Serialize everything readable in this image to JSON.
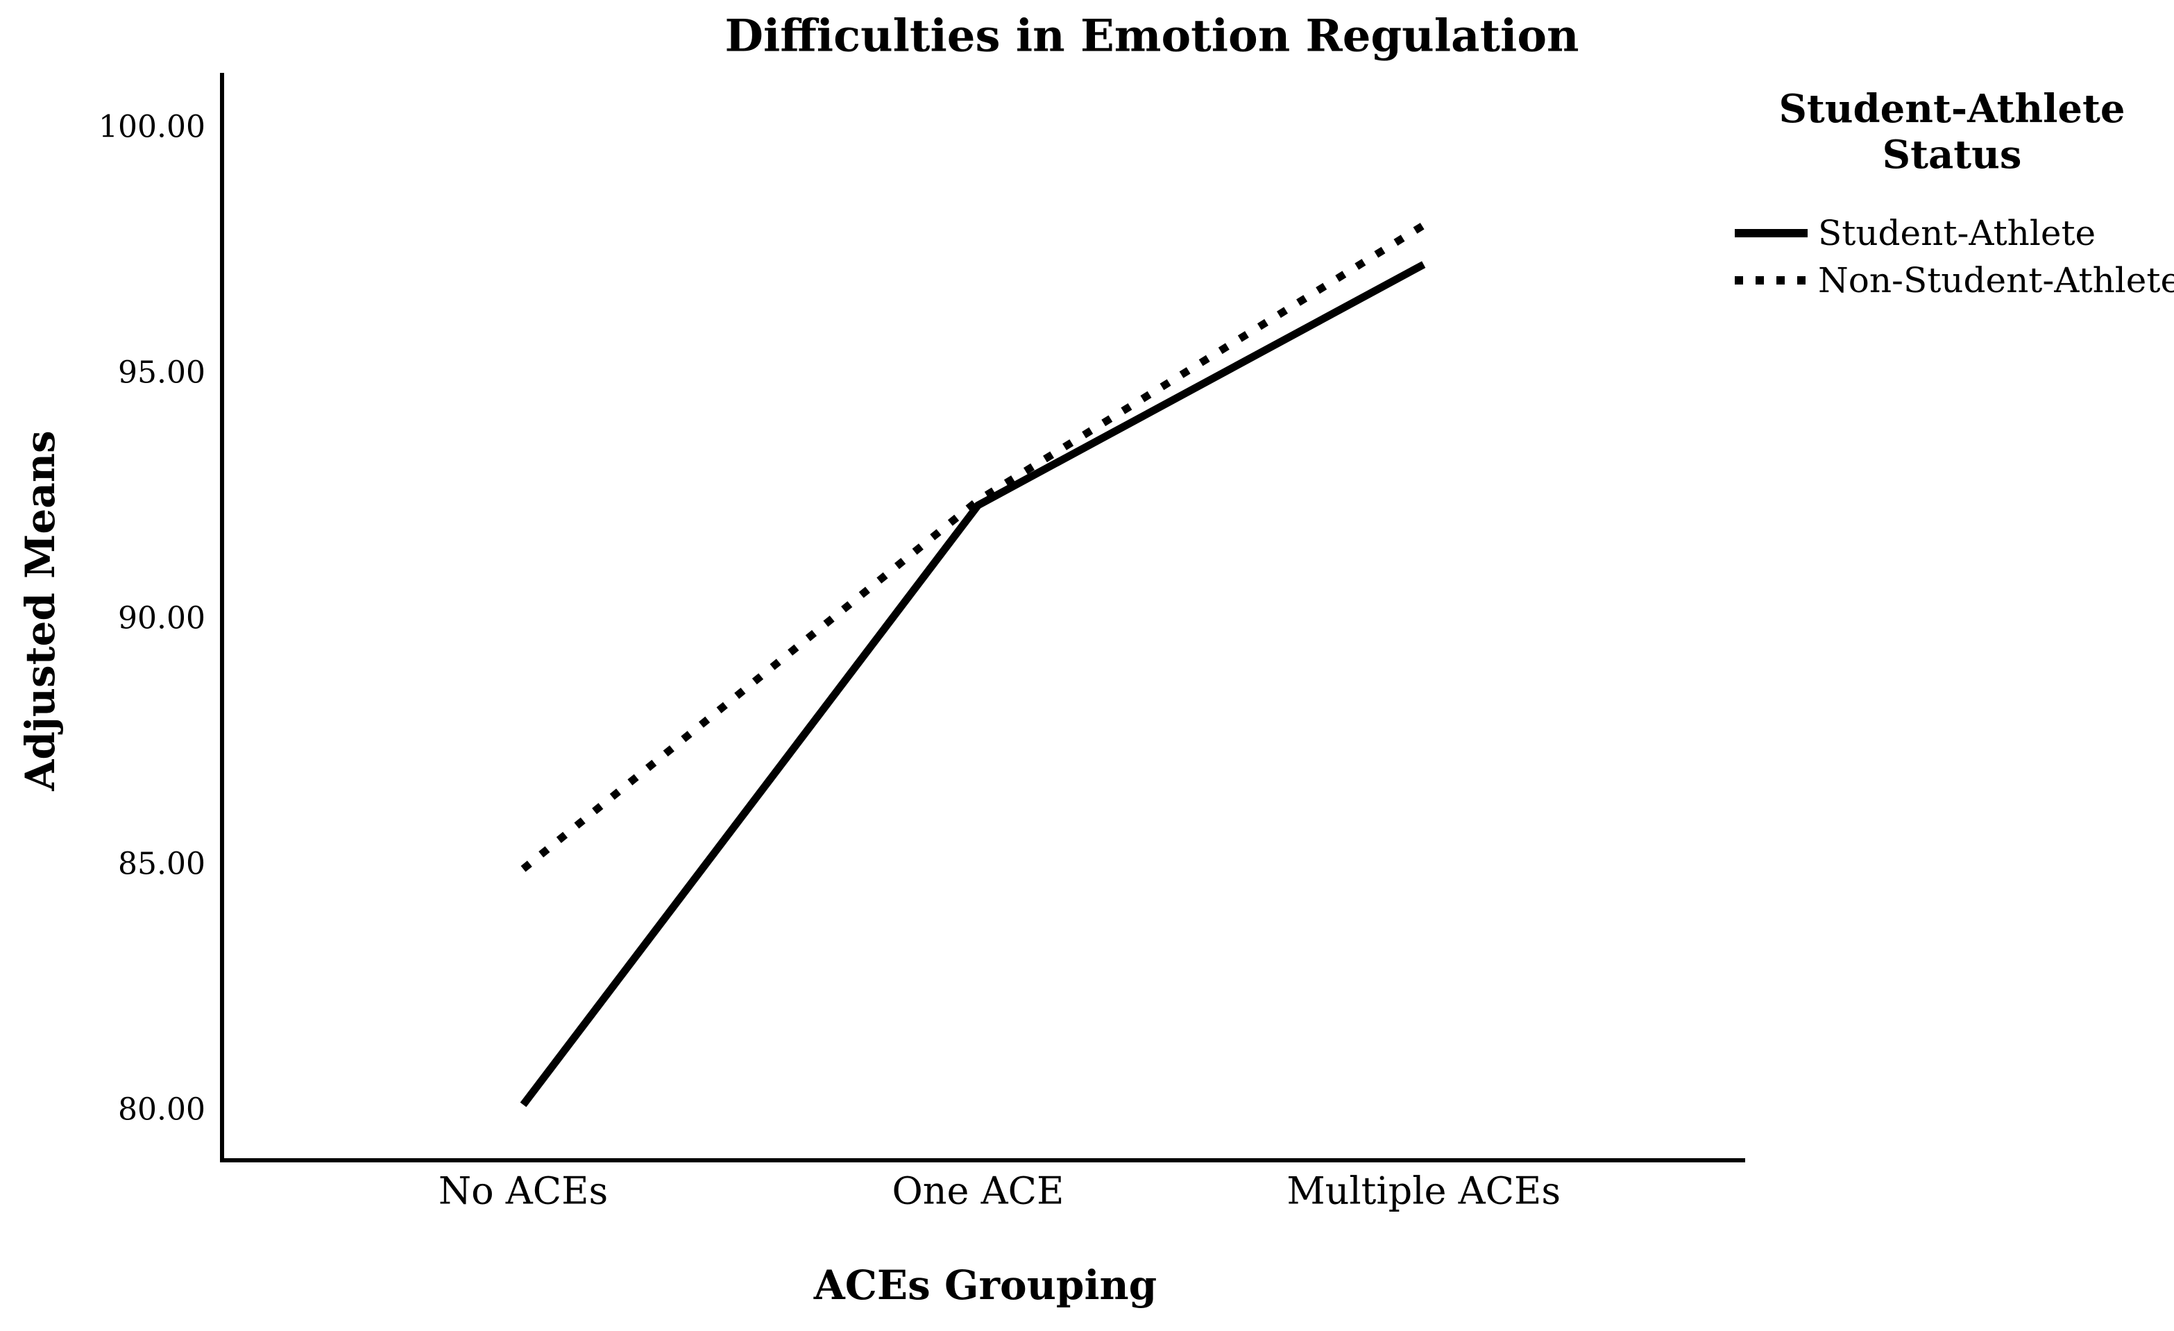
{
  "page": {
    "background_color": "#ffffff",
    "text_color": "#000000"
  },
  "chart_data": {
    "type": "line",
    "title": "Difficulties in Emotion Regulation",
    "xlabel": "ACEs Grouping",
    "ylabel": "Adjusted Means",
    "categories": [
      "No ACEs",
      "One ACE",
      "Multiple ACEs"
    ],
    "series": [
      {
        "name": "Student-Athlete",
        "line_style": "solid",
        "color": "#000000",
        "values": [
          80.1,
          92.3,
          97.2
        ]
      },
      {
        "name": "Non-Student-Athlete",
        "line_style": "dotted",
        "color": "#000000",
        "values": [
          84.9,
          92.4,
          98.0
        ]
      }
    ],
    "ylim": [
      78.97,
      101.1
    ],
    "yticks": [
      80,
      85,
      90,
      95,
      100
    ],
    "ytick_labels": [
      "80.00",
      "85.00",
      "90.00",
      "95.00",
      "100.00"
    ],
    "grid": false,
    "axis_color": "#000000",
    "legend": {
      "title_lines": [
        "Student-Athlete",
        "Status"
      ],
      "position": "top-right"
    }
  }
}
